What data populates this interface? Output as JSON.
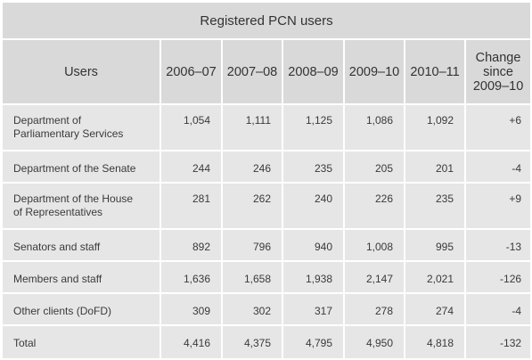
{
  "table": {
    "title": "Registered PCN users",
    "headers": [
      "Users",
      "2006–07",
      "2007–08",
      "2008–09",
      "2009–10",
      "2010–11",
      "Change since 2009–10"
    ],
    "change_header_lines": [
      "Change",
      "since",
      "2009–10"
    ],
    "rows": [
      {
        "label_lines": [
          "Department of",
          "Parliamentary Services"
        ],
        "values": [
          "1,054",
          "1,111",
          "1,125",
          "1,086",
          "1,092"
        ],
        "change": "+6"
      },
      {
        "label_lines": [
          "Department of the Senate"
        ],
        "values": [
          "244",
          "246",
          "235",
          "205",
          "201"
        ],
        "change": "-4"
      },
      {
        "label_lines": [
          "Department of the House",
          "of Representatives"
        ],
        "values": [
          "281",
          "262",
          "240",
          "226",
          "235"
        ],
        "change": "+9"
      },
      {
        "label_lines": [
          "Senators and staff"
        ],
        "values": [
          "892",
          "796",
          "940",
          "1,008",
          "995"
        ],
        "change": "-13"
      },
      {
        "label_lines": [
          "Members and staff"
        ],
        "values": [
          "1,636",
          "1,658",
          "1,938",
          "2,147",
          "2,021"
        ],
        "change": "-126"
      },
      {
        "label_lines": [
          "Other clients (DoFD)"
        ],
        "values": [
          "309",
          "302",
          "317",
          "278",
          "274"
        ],
        "change": "-4"
      },
      {
        "label_lines": [
          "Total"
        ],
        "values": [
          "4,416",
          "4,375",
          "4,795",
          "4,950",
          "4,818"
        ],
        "change": "-132"
      }
    ]
  }
}
